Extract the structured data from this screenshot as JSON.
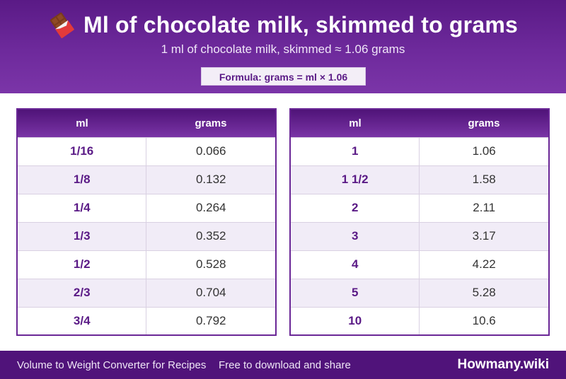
{
  "header": {
    "icon": "chocolate-bar-icon",
    "title": "Ml of chocolate milk, skimmed to grams",
    "subtitle": "1 ml of chocolate milk, skimmed ≈ 1.06 grams",
    "formula": "Formula: grams = ml × 1.06"
  },
  "colors": {
    "header_bg": "#6e2a9c",
    "accent": "#5a1a86",
    "row_alt": "#f1ecf7",
    "footer_bg": "#50137a"
  },
  "tables": {
    "left": {
      "columns": [
        "ml",
        "grams"
      ],
      "rows": [
        [
          "1/16",
          "0.066"
        ],
        [
          "1/8",
          "0.132"
        ],
        [
          "1/4",
          "0.264"
        ],
        [
          "1/3",
          "0.352"
        ],
        [
          "1/2",
          "0.528"
        ],
        [
          "2/3",
          "0.704"
        ],
        [
          "3/4",
          "0.792"
        ]
      ]
    },
    "right": {
      "columns": [
        "ml",
        "grams"
      ],
      "rows": [
        [
          "1",
          "1.06"
        ],
        [
          "1 1/2",
          "1.58"
        ],
        [
          "2",
          "2.11"
        ],
        [
          "3",
          "3.17"
        ],
        [
          "4",
          "4.22"
        ],
        [
          "5",
          "5.28"
        ],
        [
          "10",
          "10.6"
        ]
      ]
    }
  },
  "footer": {
    "left": "Volume to Weight Converter for Recipes",
    "middle": "Free to download and share",
    "brand": "Howmany.wiki"
  }
}
